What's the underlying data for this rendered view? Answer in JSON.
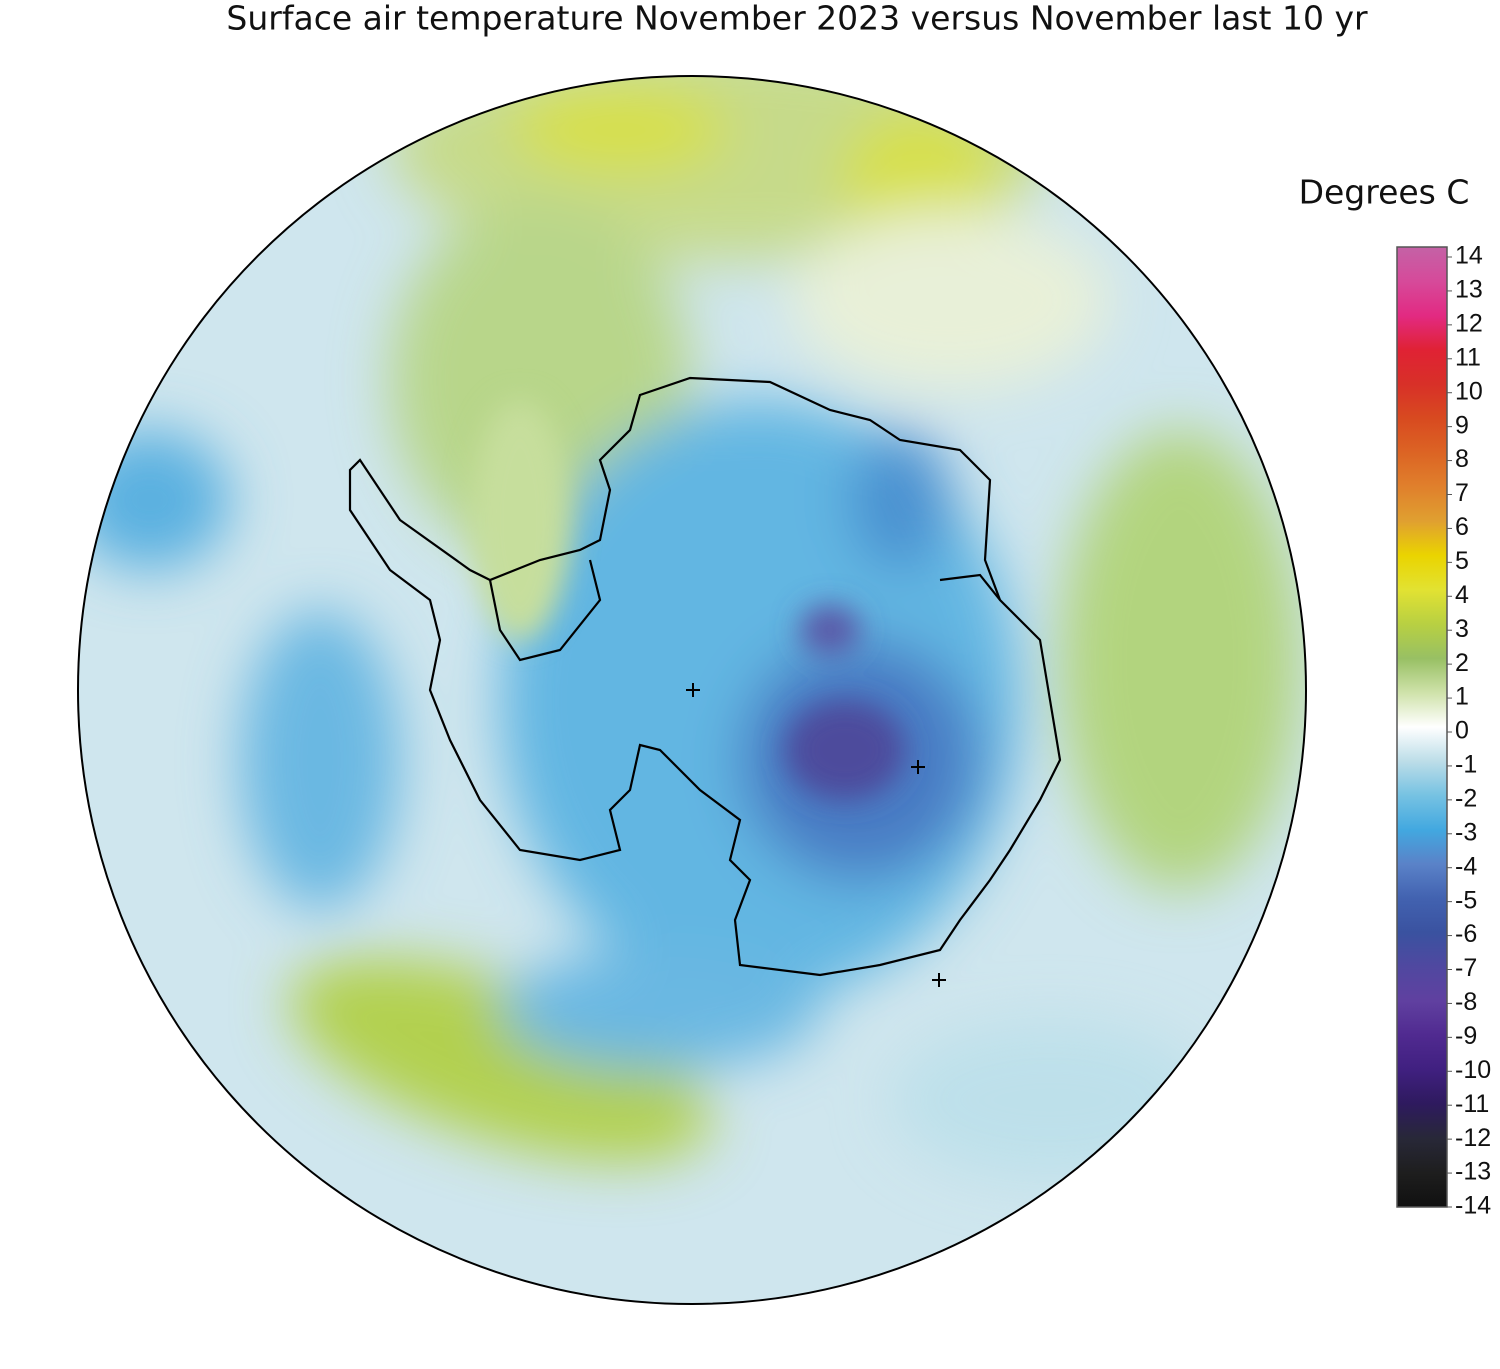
{
  "title": "Surface air temperature November 2023 versus November last 10 yr",
  "colorbar": {
    "label": "Degrees C",
    "ticks": [
      14,
      13,
      12,
      11,
      10,
      9,
      8,
      7,
      6,
      5,
      4,
      3,
      2,
      1,
      0,
      -1,
      -2,
      -3,
      -4,
      -5,
      -6,
      -7,
      -8,
      -9,
      -10,
      -11,
      -12,
      -13,
      -14
    ],
    "colors": [
      "#c462a6",
      "#d64a9a",
      "#e22a82",
      "#e02234",
      "#d83028",
      "#d84a20",
      "#dc6424",
      "#e0802c",
      "#e0a030",
      "#ead400",
      "#e2e232",
      "#b8d042",
      "#98c064",
      "#cfe2aa",
      "#ffffff",
      "#bcdde8",
      "#76c2e2",
      "#42a8e0",
      "#5a82c8",
      "#4262b0",
      "#3a52a0",
      "#5048a0",
      "#6040a0",
      "#502a90",
      "#402080",
      "#2e1a5e",
      "#282838",
      "#1e1e1e",
      "#101010"
    ]
  }
}
